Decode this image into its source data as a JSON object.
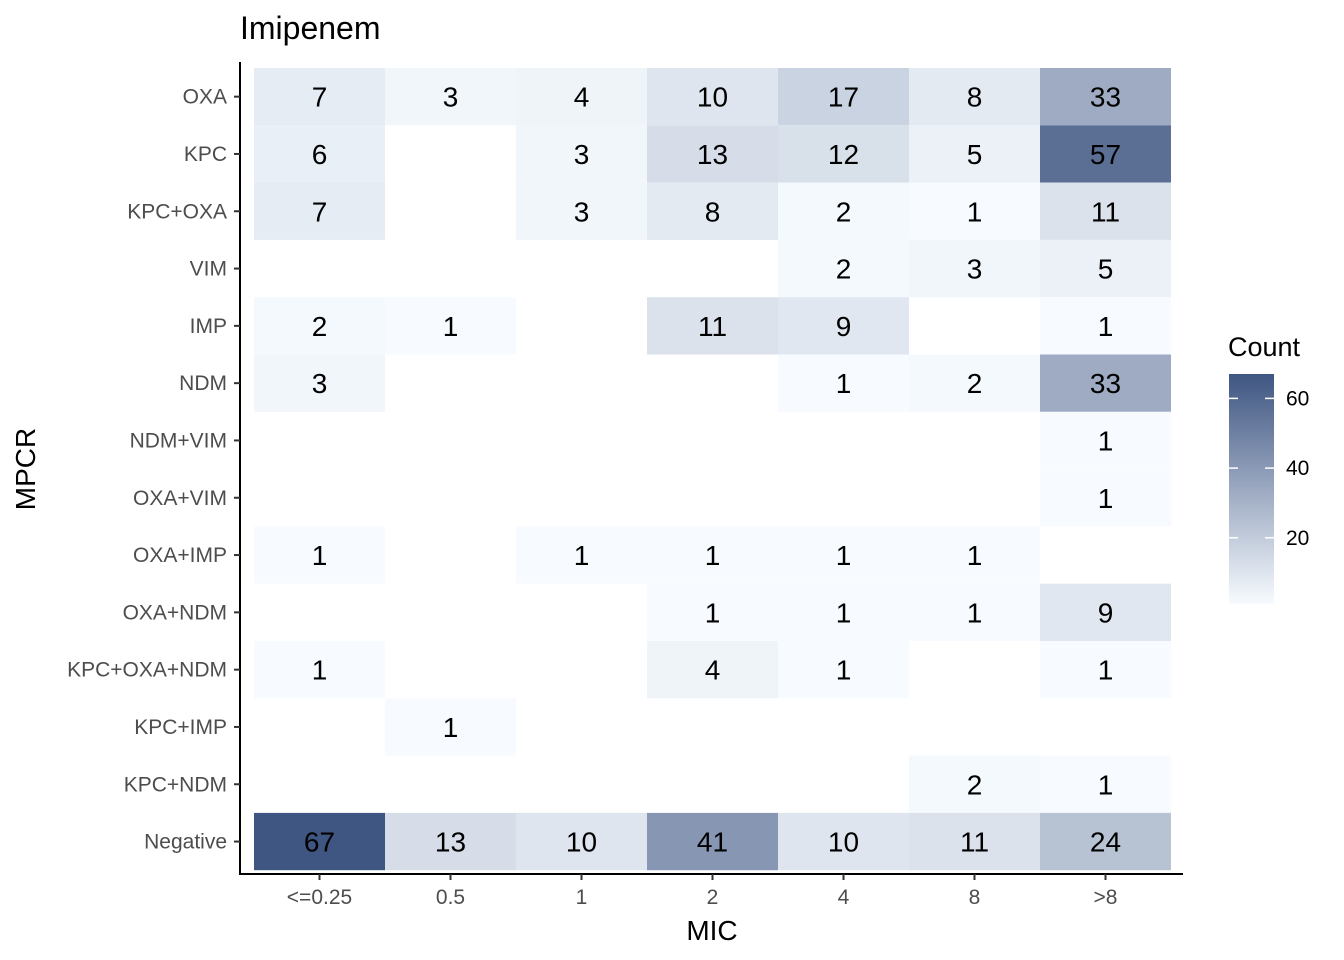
{
  "chart_data": {
    "type": "heatmap",
    "title": "Imipenem",
    "xlabel": "MIC",
    "ylabel": "MPCR",
    "x_categories": [
      "<=0.25",
      "0.5",
      "1",
      "2",
      "4",
      "8",
      ">8"
    ],
    "y_categories": [
      "OXA",
      "KPC",
      "KPC+OXA",
      "VIM",
      "IMP",
      "NDM",
      "NDM+VIM",
      "OXA+VIM",
      "OXA+IMP",
      "OXA+NDM",
      "KPC+OXA+NDM",
      "KPC+IMP",
      "KPC+NDM",
      "Negative"
    ],
    "values": [
      [
        7,
        3,
        4,
        10,
        17,
        8,
        33
      ],
      [
        6,
        null,
        3,
        13,
        12,
        5,
        57
      ],
      [
        7,
        null,
        3,
        8,
        2,
        1,
        11
      ],
      [
        null,
        null,
        null,
        null,
        2,
        3,
        5
      ],
      [
        2,
        1,
        null,
        11,
        9,
        null,
        1
      ],
      [
        3,
        null,
        null,
        null,
        1,
        2,
        33
      ],
      [
        null,
        null,
        null,
        null,
        null,
        null,
        1
      ],
      [
        null,
        null,
        null,
        null,
        null,
        null,
        1
      ],
      [
        1,
        null,
        1,
        1,
        1,
        1,
        null
      ],
      [
        null,
        null,
        null,
        1,
        1,
        1,
        9
      ],
      [
        1,
        null,
        null,
        4,
        1,
        null,
        1
      ],
      [
        null,
        1,
        null,
        null,
        null,
        null,
        null
      ],
      [
        null,
        null,
        null,
        null,
        null,
        2,
        1
      ],
      [
        67,
        13,
        10,
        41,
        10,
        11,
        24
      ]
    ],
    "legend": {
      "title": "Count",
      "ticks": [
        20,
        40,
        60
      ],
      "range": [
        1,
        67
      ],
      "low_color": "#f7fbff",
      "high_color": "#3f5682"
    },
    "grid": false,
    "legend_position": "right"
  }
}
